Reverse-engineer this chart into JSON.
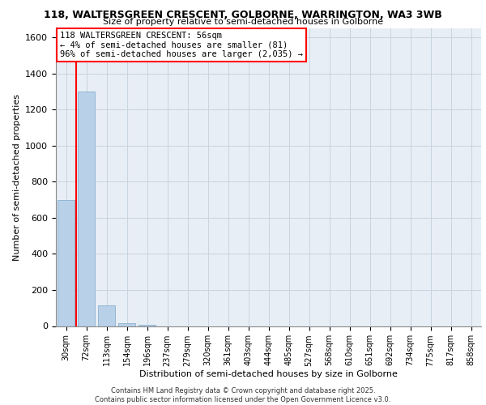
{
  "title_line1": "118, WALTERSGREEN CRESCENT, GOLBORNE, WARRINGTON, WA3 3WB",
  "title_line2": "Size of property relative to semi-detached houses in Golborne",
  "xlabel": "Distribution of semi-detached houses by size in Golborne",
  "ylabel": "Number of semi-detached properties",
  "annotation_title": "118 WALTERSGREEN CRESCENT: 56sqm",
  "annotation_line2": "← 4% of semi-detached houses are smaller (81)",
  "annotation_line3": "96% of semi-detached houses are larger (2,035) →",
  "footer_line1": "Contains HM Land Registry data © Crown copyright and database right 2025.",
  "footer_line2": "Contains public sector information licensed under the Open Government Licence v3.0.",
  "categories": [
    "30sqm",
    "72sqm",
    "113sqm",
    "154sqm",
    "196sqm",
    "237sqm",
    "279sqm",
    "320sqm",
    "361sqm",
    "403sqm",
    "444sqm",
    "485sqm",
    "527sqm",
    "568sqm",
    "610sqm",
    "651sqm",
    "692sqm",
    "734sqm",
    "775sqm",
    "817sqm",
    "858sqm"
  ],
  "values": [
    700,
    1300,
    113,
    15,
    8,
    0,
    0,
    0,
    0,
    0,
    0,
    0,
    0,
    0,
    0,
    0,
    0,
    0,
    0,
    0,
    0
  ],
  "bar_color_normal": "#b8d0e8",
  "bar_edge_color": "#7aaac8",
  "highlight_box_color": "#ff0000",
  "red_line_x": 0.5,
  "background_color": "#e8eef5",
  "grid_color": "#c8d4e0",
  "ylim": [
    0,
    1650
  ],
  "yticks": [
    0,
    200,
    400,
    600,
    800,
    1000,
    1200,
    1400,
    1600
  ]
}
